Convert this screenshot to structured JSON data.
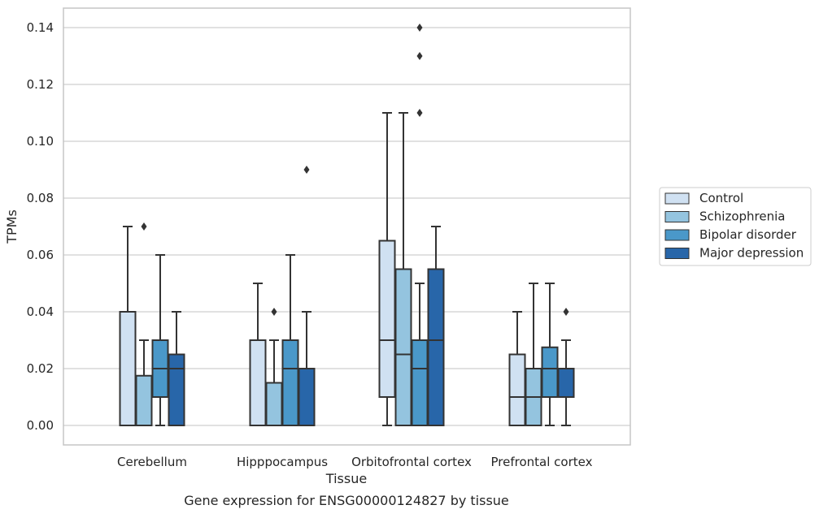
{
  "chart_data": {
    "type": "box",
    "title": "",
    "caption": "Gene expression for ENSG00000124827 by tissue",
    "xlabel": "Tissue",
    "ylabel": "TPMs",
    "ylim": [
      -0.007,
      0.147
    ],
    "yticks": [
      0.0,
      0.02,
      0.04,
      0.06,
      0.08,
      0.1,
      0.12,
      0.14
    ],
    "ytick_labels": [
      "0.00",
      "0.02",
      "0.04",
      "0.06",
      "0.08",
      "0.10",
      "0.12",
      "0.14"
    ],
    "grid": "horizontal",
    "legend_position": "right",
    "categories": [
      "Cerebellum",
      "Hipppocampus",
      "Orbitofrontal cortex",
      "Prefrontal cortex"
    ],
    "series": [
      {
        "name": "Control",
        "color": "#d0e1f2",
        "boxes": [
          {
            "whislo": 0.0,
            "q1": 0.0,
            "med": 0.0,
            "q3": 0.04,
            "whishi": 0.07,
            "fliers": []
          },
          {
            "whislo": 0.0,
            "q1": 0.0,
            "med": 0.0,
            "q3": 0.03,
            "whishi": 0.05,
            "fliers": []
          },
          {
            "whislo": 0.0,
            "q1": 0.01,
            "med": 0.03,
            "q3": 0.065,
            "whishi": 0.11,
            "fliers": []
          },
          {
            "whislo": 0.0,
            "q1": 0.0,
            "med": 0.01,
            "q3": 0.025,
            "whishi": 0.04,
            "fliers": []
          }
        ]
      },
      {
        "name": "Schizophrenia",
        "color": "#94c4df",
        "boxes": [
          {
            "whislo": 0.0,
            "q1": 0.0,
            "med": 0.0,
            "q3": 0.0175,
            "whishi": 0.03,
            "fliers": [
              0.07
            ]
          },
          {
            "whislo": 0.0,
            "q1": 0.0,
            "med": 0.0,
            "q3": 0.015,
            "whishi": 0.03,
            "fliers": [
              0.04
            ]
          },
          {
            "whislo": 0.0,
            "q1": 0.0,
            "med": 0.025,
            "q3": 0.055,
            "whishi": 0.11,
            "fliers": []
          },
          {
            "whislo": 0.0,
            "q1": 0.0,
            "med": 0.01,
            "q3": 0.02,
            "whishi": 0.05,
            "fliers": []
          }
        ]
      },
      {
        "name": "Bipolar disorder",
        "color": "#4a98c9",
        "boxes": [
          {
            "whislo": 0.0,
            "q1": 0.01,
            "med": 0.02,
            "q3": 0.03,
            "whishi": 0.06,
            "fliers": []
          },
          {
            "whislo": 0.0,
            "q1": 0.0,
            "med": 0.02,
            "q3": 0.03,
            "whishi": 0.06,
            "fliers": []
          },
          {
            "whislo": 0.0,
            "q1": 0.0,
            "med": 0.02,
            "q3": 0.03,
            "whishi": 0.05,
            "fliers": [
              0.11,
              0.13,
              0.14
            ]
          },
          {
            "whislo": 0.0,
            "q1": 0.01,
            "med": 0.02,
            "q3": 0.0275,
            "whishi": 0.05,
            "fliers": []
          }
        ]
      },
      {
        "name": "Major depression",
        "color": "#2866a9",
        "boxes": [
          {
            "whislo": 0.0,
            "q1": 0.0,
            "med": 0.02,
            "q3": 0.025,
            "whishi": 0.04,
            "fliers": []
          },
          {
            "whislo": 0.0,
            "q1": 0.0,
            "med": 0.02,
            "q3": 0.02,
            "whishi": 0.04,
            "fliers": [
              0.09
            ]
          },
          {
            "whislo": 0.0,
            "q1": 0.0,
            "med": 0.03,
            "q3": 0.055,
            "whishi": 0.07,
            "fliers": []
          },
          {
            "whislo": 0.0,
            "q1": 0.01,
            "med": 0.01,
            "q3": 0.02,
            "whishi": 0.03,
            "fliers": [
              0.04
            ]
          }
        ]
      }
    ]
  }
}
